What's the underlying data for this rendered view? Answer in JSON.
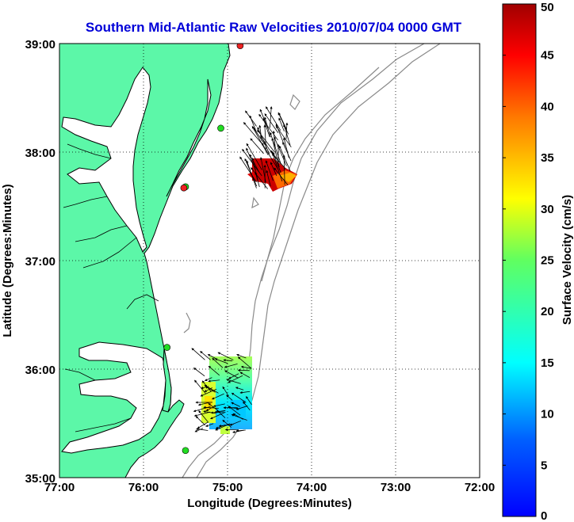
{
  "map": {
    "title": "Southern Mid-Atlantic Raw Velocities 2010/07/04 0000 GMT",
    "xlabel": "Longitude (Degrees:Minutes)",
    "ylabel": "Latitude (Degrees:Minutes)",
    "x_ticks": [
      "77:00",
      "76:00",
      "75:00",
      "74:00",
      "73:00",
      "72:00"
    ],
    "y_ticks": [
      "39:00",
      "38:00",
      "37:00",
      "36:00",
      "35:00"
    ],
    "x_range_deg": [
      -77,
      -72
    ],
    "y_range_deg": [
      35,
      39
    ],
    "grid": "dotted",
    "colors": {
      "land": "#5cf7a8",
      "title": "#0000d8",
      "bathymetry": "#888888",
      "station_green": "#22dd22",
      "station_red": "#ee2222"
    },
    "stations": [
      {
        "lon": -74.85,
        "lat": 38.98,
        "color": "red"
      },
      {
        "lon": -75.08,
        "lat": 38.22,
        "color": "green"
      },
      {
        "lon": -75.5,
        "lat": 37.68,
        "color": "green"
      },
      {
        "lon": -75.52,
        "lat": 37.67,
        "color": "red"
      },
      {
        "lon": -75.72,
        "lat": 36.2,
        "color": "green"
      },
      {
        "lon": -75.5,
        "lat": 35.25,
        "color": "green"
      }
    ]
  },
  "colorbar": {
    "label": "Surface Velocity (cm/s)",
    "ticks": [
      "50",
      "45",
      "40",
      "35",
      "30",
      "25",
      "20",
      "15",
      "10",
      "5",
      "0"
    ],
    "range": [
      0,
      50
    ],
    "colormap": "jet"
  }
}
